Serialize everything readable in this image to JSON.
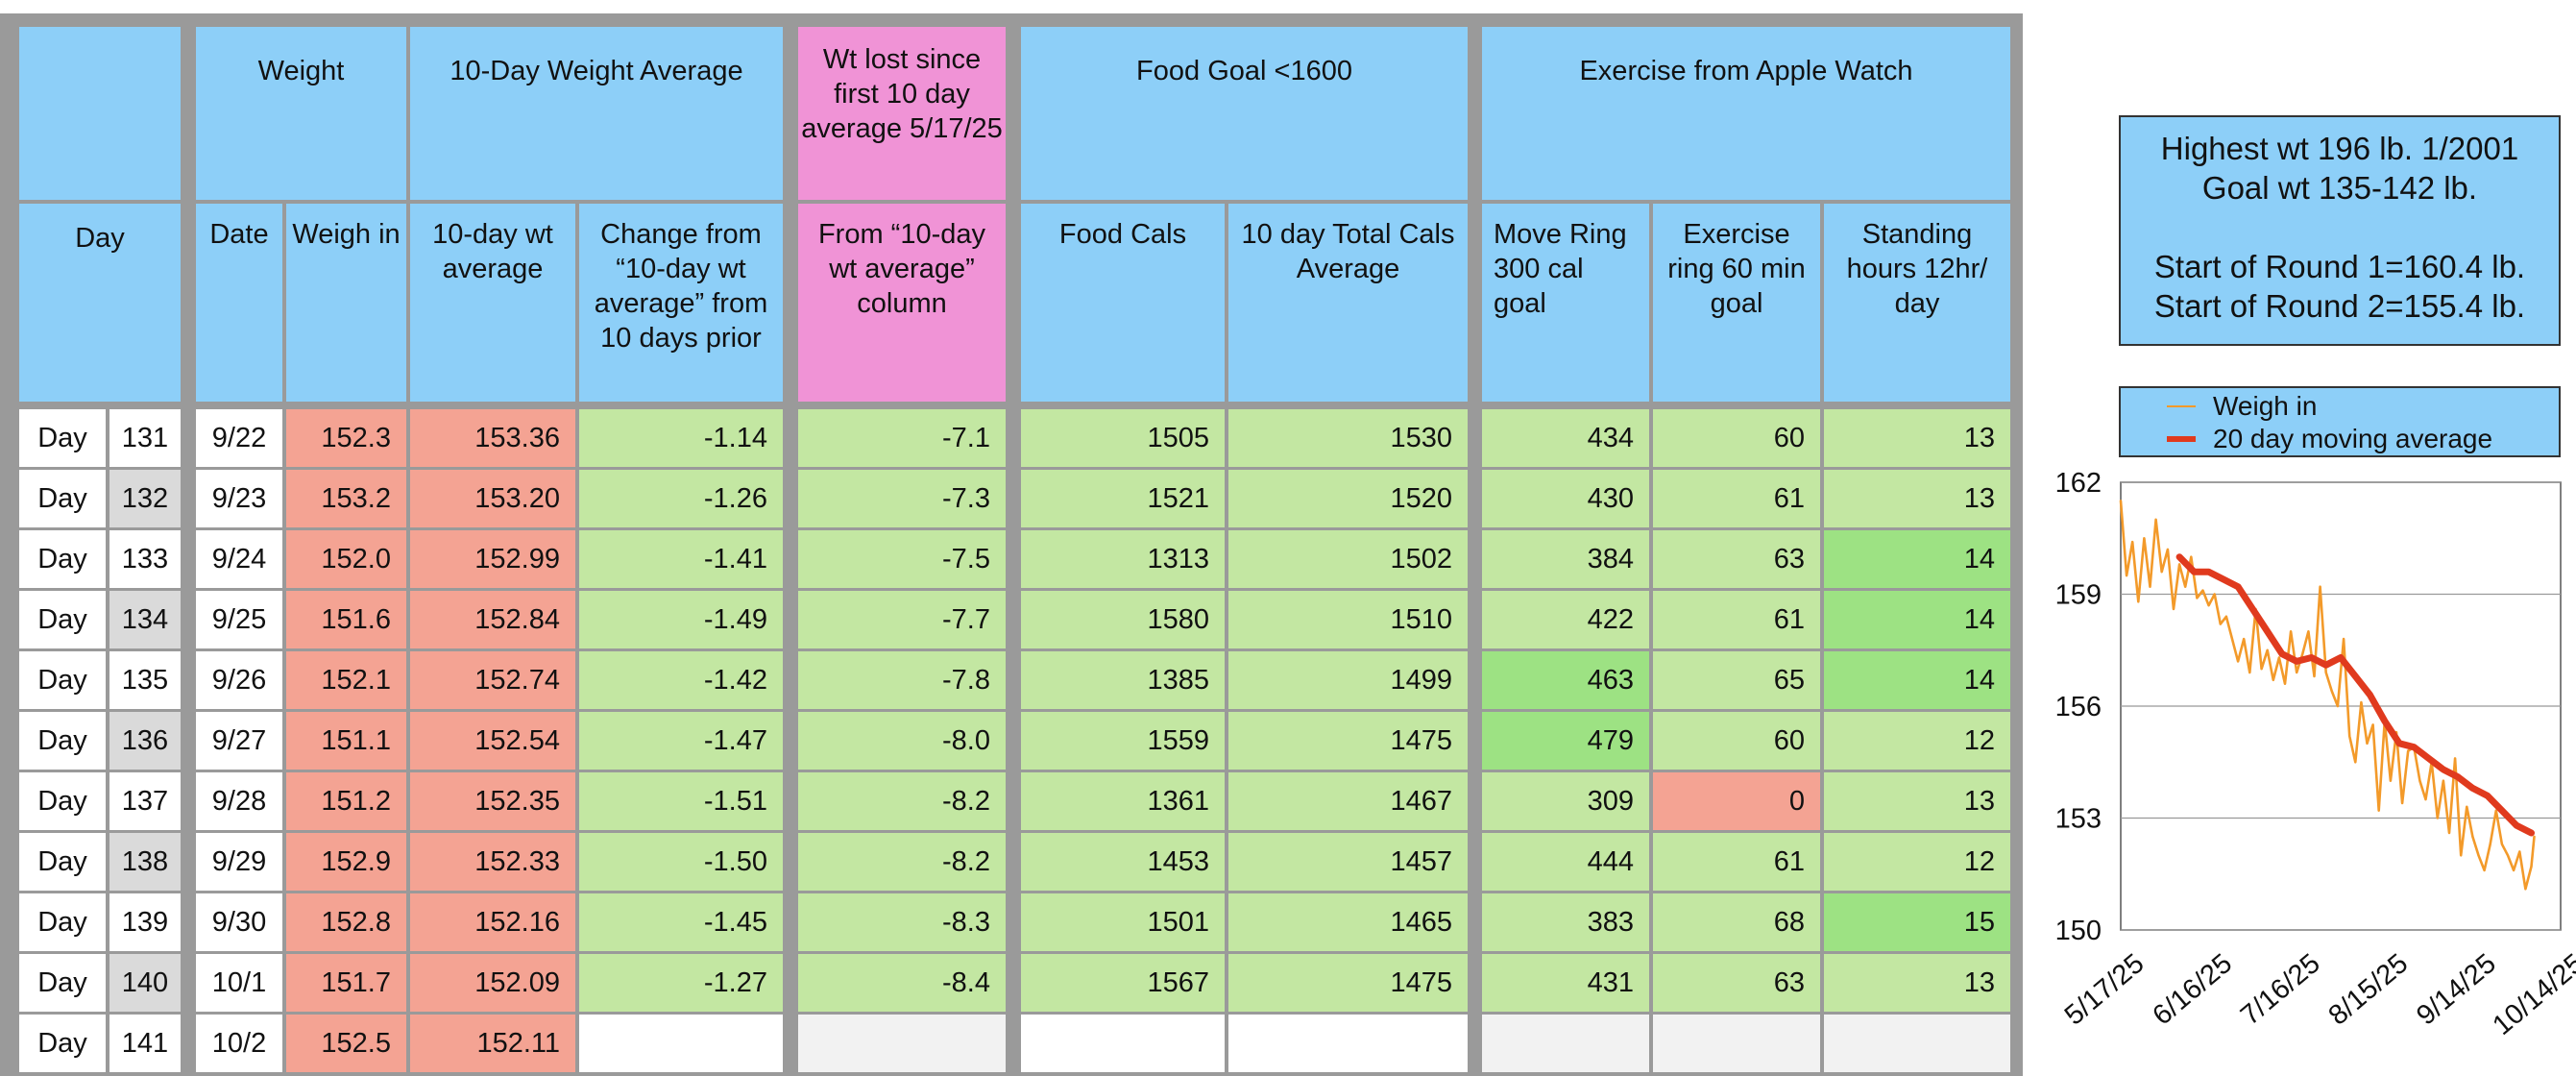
{
  "headers": {
    "weight": "Weight",
    "avg10": "10-Day Weight Average",
    "wtlost": "Wt lost since first 10 day average 5/17/25",
    "food": "Food Goal <1600",
    "exercise": "Exercise from Apple Watch",
    "day": "Day",
    "date": "Date",
    "weighin": "Weigh in",
    "avgcol": "10-day wt average",
    "change": "Change from “10-day wt average” from 10 days prior",
    "from10": "From “10-day wt average” column",
    "foodcals": "Food Cals",
    "totalcals": "10 day Total Cals Average",
    "move": "Move Ring 300 cal goal",
    "exring": "Exercise ring 60 min goal",
    "standing": "Standing hours 12hr/ day"
  },
  "rows": [
    {
      "day_label": "Day",
      "day_num": "131",
      "date": "9/22",
      "weigh": "152.3",
      "avg": "153.36",
      "change": "-1.14",
      "lost": "-7.1",
      "food": "1505",
      "total": "1530",
      "move": "434",
      "exercise": "60",
      "stand": "13"
    },
    {
      "day_label": "Day",
      "day_num": "132",
      "date": "9/23",
      "weigh": "153.2",
      "avg": "153.20",
      "change": "-1.26",
      "lost": "-7.3",
      "food": "1521",
      "total": "1520",
      "move": "430",
      "exercise": "61",
      "stand": "13"
    },
    {
      "day_label": "Day",
      "day_num": "133",
      "date": "9/24",
      "weigh": "152.0",
      "avg": "152.99",
      "change": "-1.41",
      "lost": "-7.5",
      "food": "1313",
      "total": "1502",
      "move": "384",
      "exercise": "63",
      "stand": "14"
    },
    {
      "day_label": "Day",
      "day_num": "134",
      "date": "9/25",
      "weigh": "151.6",
      "avg": "152.84",
      "change": "-1.49",
      "lost": "-7.7",
      "food": "1580",
      "total": "1510",
      "move": "422",
      "exercise": "61",
      "stand": "14"
    },
    {
      "day_label": "Day",
      "day_num": "135",
      "date": "9/26",
      "weigh": "152.1",
      "avg": "152.74",
      "change": "-1.42",
      "lost": "-7.8",
      "food": "1385",
      "total": "1499",
      "move": "463",
      "exercise": "65",
      "stand": "14"
    },
    {
      "day_label": "Day",
      "day_num": "136",
      "date": "9/27",
      "weigh": "151.1",
      "avg": "152.54",
      "change": "-1.47",
      "lost": "-8.0",
      "food": "1559",
      "total": "1475",
      "move": "479",
      "exercise": "60",
      "stand": "12"
    },
    {
      "day_label": "Day",
      "day_num": "137",
      "date": "9/28",
      "weigh": "151.2",
      "avg": "152.35",
      "change": "-1.51",
      "lost": "-8.2",
      "food": "1361",
      "total": "1467",
      "move": "309",
      "exercise": "0",
      "stand": "13"
    },
    {
      "day_label": "Day",
      "day_num": "138",
      "date": "9/29",
      "weigh": "152.9",
      "avg": "152.33",
      "change": "-1.50",
      "lost": "-8.2",
      "food": "1453",
      "total": "1457",
      "move": "444",
      "exercise": "61",
      "stand": "12"
    },
    {
      "day_label": "Day",
      "day_num": "139",
      "date": "9/30",
      "weigh": "152.8",
      "avg": "152.16",
      "change": "-1.45",
      "lost": "-8.3",
      "food": "1501",
      "total": "1465",
      "move": "383",
      "exercise": "68",
      "stand": "15"
    },
    {
      "day_label": "Day",
      "day_num": "140",
      "date": "10/1",
      "weigh": "151.7",
      "avg": "152.09",
      "change": "-1.27",
      "lost": "-8.4",
      "food": "1567",
      "total": "1475",
      "move": "431",
      "exercise": "63",
      "stand": "13"
    },
    {
      "day_label": "Day",
      "day_num": "141",
      "date": "10/2",
      "weigh": "152.5",
      "avg": "152.11",
      "change": "",
      "lost": "",
      "food": "",
      "total": "",
      "move": "",
      "exercise": "",
      "stand": ""
    }
  ],
  "highlights": {
    "stand_green_rows": [
      2,
      3,
      4,
      8
    ],
    "move_green_rows": [
      4,
      5
    ],
    "exercise_salmon_rows": [
      6
    ]
  },
  "colors": {
    "header_blue": "#8dcff8",
    "header_pink": "#f093d6",
    "salmon": "#f4a393",
    "light_green": "#c3e7a2",
    "bright_green": "#9de283",
    "weigh_line": "#f39a2a",
    "avg_line": "#e03a1e"
  },
  "info": {
    "line1": "Highest wt 196 lb.  1/2001",
    "line2": "Goal wt 135-142 lb.",
    "line3": "Start of Round 1=160.4 lb.",
    "line4": "Start of Round 2=155.4 lb."
  },
  "legend": {
    "weigh": "Weigh in",
    "avg": "20 day moving average"
  },
  "chart_data": {
    "type": "line",
    "x_tick_labels": [
      "5/17/25",
      "6/16/25",
      "7/16/25",
      "8/15/25",
      "9/14/25",
      "10/14/25"
    ],
    "y_ticks": [
      150,
      153,
      156,
      159,
      162
    ],
    "ylim": [
      150,
      162
    ],
    "x_range_days": [
      0,
      150
    ],
    "grid": "horizontal",
    "legend_position": "top",
    "series": [
      {
        "name": "Weigh in",
        "color": "#f39a2a",
        "x": [
          0,
          2,
          4,
          6,
          8,
          10,
          12,
          14,
          16,
          18,
          20,
          22,
          24,
          26,
          28,
          30,
          32,
          34,
          36,
          38,
          40,
          42,
          44,
          46,
          48,
          50,
          52,
          54,
          56,
          58,
          60,
          62,
          64,
          66,
          68,
          70,
          72,
          74,
          76,
          78,
          80,
          82,
          84,
          86,
          88,
          90,
          92,
          94,
          96,
          98,
          100,
          102,
          104,
          106,
          108,
          110,
          112,
          114,
          116,
          118,
          120,
          122,
          124,
          126,
          128,
          130,
          132,
          134,
          136,
          138,
          140,
          141
        ],
        "values": [
          161.5,
          159.5,
          160.4,
          158.8,
          160.5,
          159.2,
          161.0,
          159.6,
          160.2,
          158.6,
          159.8,
          159.2,
          160.0,
          158.9,
          159.1,
          158.7,
          159.0,
          158.2,
          158.4,
          157.8,
          157.2,
          157.8,
          156.9,
          158.6,
          157.0,
          157.5,
          156.7,
          157.3,
          156.6,
          158.0,
          156.9,
          157.4,
          158.0,
          156.8,
          159.2,
          156.9,
          156.4,
          156.0,
          157.8,
          155.2,
          154.5,
          156.1,
          155.0,
          155.5,
          153.2,
          155.6,
          154.0,
          155.3,
          153.4,
          154.8,
          154.9,
          154.0,
          153.5,
          154.5,
          153.0,
          154.0,
          152.6,
          154.6,
          152.0,
          153.3,
          152.5,
          152.0,
          151.6,
          152.3,
          153.2,
          152.3,
          152.0,
          151.6,
          152.1,
          151.1,
          151.7,
          152.5
        ]
      },
      {
        "name": "20 day moving average",
        "color": "#e03a1e",
        "x": [
          20,
          25,
          30,
          35,
          40,
          45,
          50,
          55,
          60,
          65,
          70,
          75,
          80,
          85,
          90,
          95,
          100,
          105,
          110,
          115,
          120,
          125,
          130,
          135,
          140
        ],
        "values": [
          160.0,
          159.6,
          159.6,
          159.4,
          159.2,
          158.6,
          158.0,
          157.4,
          157.2,
          157.3,
          157.1,
          157.3,
          156.8,
          156.3,
          155.6,
          155.0,
          154.9,
          154.6,
          154.3,
          154.1,
          153.8,
          153.6,
          153.2,
          152.8,
          152.6
        ]
      }
    ]
  }
}
